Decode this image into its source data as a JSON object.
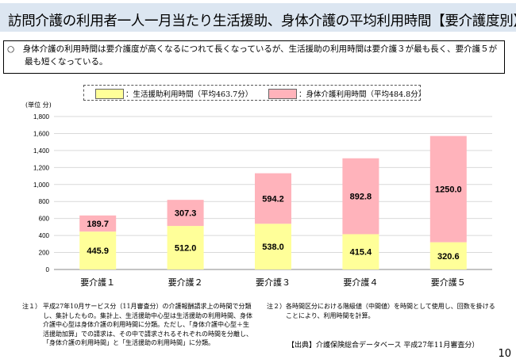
{
  "title": "訪問介護の利用者一人一月当たり生活援助、身体介護の平均利用時間【要介護度別】",
  "summary": "○　身体介護の利用時間は要介護度が高くなるにつれて長くなっているが、生活援助の利用時間は要介護３が最も長く、要介護５が最も短くなっている。",
  "chart_data": {
    "type": "bar",
    "stacked": true,
    "unit_label": "(単位 分)",
    "categories": [
      "要介護１",
      "要介護２",
      "要介護３",
      "要介護４",
      "要介護５"
    ],
    "series": [
      {
        "name": "：生活援助利用時間（平均463.7分）",
        "color": "#ffff99",
        "values": [
          445.9,
          512.0,
          538.0,
          415.4,
          320.6
        ],
        "labels": [
          "445.9",
          "512.0",
          "538.0",
          "415.4",
          "320.6"
        ]
      },
      {
        "name": "：身体介護利用時間（平均484.8分）",
        "color": "#ffb3bb",
        "values": [
          189.7,
          307.3,
          594.2,
          892.8,
          1250.0
        ],
        "labels": [
          "189.7",
          "307.3",
          "594.2",
          "892.8",
          "1250.0"
        ]
      }
    ],
    "ylim": [
      0,
      1800
    ],
    "yticks": [
      "0",
      "200",
      "400",
      "600",
      "800",
      "1,000",
      "1,200",
      "1,400",
      "1,600",
      "1,800"
    ],
    "grid": true,
    "legend": "top"
  },
  "notes": {
    "note1_label": "注１）",
    "note1": "平成27年10月サービス分（11月審査分）の介護報酬請求上の時間で分類し、集計したもの。集計上、生活援助中心型は生活援助の利用時間、身体介護中心型は身体介護の利用時間に分類。ただし、「身体介護中心型＋生活援助加算」での請求は、その中で請求されるそれぞれの時間を分離し、「身体介護の利用時間」と「生活援助の利用時間」に分類。",
    "note2_label": "注２）",
    "note2": "各時間区分における階級値（中間値）を時間として使用し、回数を掛けることにより、利用時間を計算。",
    "source": "【出典】介護保険総合データベース 平成27年11月審査分）"
  },
  "page_number": "10"
}
